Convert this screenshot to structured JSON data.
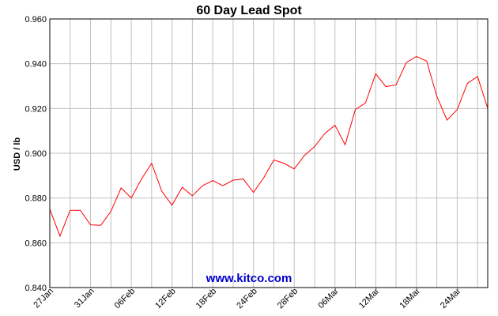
{
  "chart_data": {
    "type": "line",
    "title": "60 Day Lead Spot",
    "ylabel": "USD / lb",
    "xlabel": "",
    "ylim": [
      0.84,
      0.96
    ],
    "y_ticks": [
      "0.960",
      "0.940",
      "0.920",
      "0.900",
      "0.880",
      "0.860",
      "0.840"
    ],
    "x_tick_labels": [
      "27Jan",
      "31Jan",
      "06Feb",
      "12Feb",
      "18Feb",
      "24Feb",
      "28Feb",
      "06Mar",
      "12Mar",
      "18Mar",
      "24Mar"
    ],
    "grid": true,
    "line_color": "#ff0000",
    "watermark": "www.kitco.com",
    "series": [
      {
        "values": [
          0.875,
          0.863,
          0.8745,
          0.8745,
          0.868,
          0.8678,
          0.874,
          0.8845,
          0.88,
          0.8885,
          0.8955,
          0.883,
          0.8768,
          0.8848,
          0.881,
          0.8855,
          0.8878,
          0.8855,
          0.888,
          0.8885,
          0.8825,
          0.889,
          0.897,
          0.8955,
          0.893,
          0.899,
          0.903,
          0.9088,
          0.9125,
          0.9038,
          0.9195,
          0.9225,
          0.9355,
          0.9298,
          0.9305,
          0.9405,
          0.9432,
          0.9412,
          0.9255,
          0.9148,
          0.9195,
          0.9312,
          0.9343,
          0.92
        ]
      }
    ]
  }
}
